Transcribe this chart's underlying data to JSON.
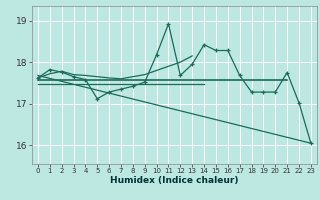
{
  "title": "",
  "xlabel": "Humidex (Indice chaleur)",
  "background_color": "#bde8e2",
  "grid_color": "#ffffff",
  "line_color": "#1a6b5a",
  "xlim": [
    -0.5,
    23.5
  ],
  "ylim": [
    15.55,
    19.35
  ],
  "yticks": [
    16,
    17,
    18,
    19
  ],
  "xticks": [
    0,
    1,
    2,
    3,
    4,
    5,
    6,
    7,
    8,
    9,
    10,
    11,
    12,
    13,
    14,
    15,
    16,
    17,
    18,
    19,
    20,
    21,
    22,
    23
  ],
  "main_y": [
    17.62,
    17.82,
    17.76,
    17.65,
    17.58,
    17.12,
    17.28,
    17.35,
    17.42,
    17.52,
    18.18,
    18.92,
    17.68,
    17.95,
    18.42,
    18.28,
    18.28,
    17.68,
    17.28,
    17.28,
    17.28,
    17.75,
    17.02,
    16.05
  ],
  "mean_line_y_start": 17.58,
  "mean_line_y_end": 17.58,
  "mean_line_x_start": 0,
  "mean_line_x_end": 21,
  "flat_line_y": 17.48,
  "flat_line_x_start": 0,
  "flat_line_x_end": 14,
  "trend2_x_start": 0,
  "trend2_y_start": 17.68,
  "trend2_x_end": 23,
  "trend2_y_end": 16.05,
  "smooth_curve_x": [
    0,
    1,
    2,
    3,
    4,
    5,
    6,
    7,
    8,
    9,
    10,
    11,
    12,
    13
  ],
  "smooth_curve_y": [
    17.62,
    17.72,
    17.78,
    17.7,
    17.68,
    17.65,
    17.62,
    17.6,
    17.65,
    17.7,
    17.8,
    17.9,
    18.0,
    18.15
  ]
}
